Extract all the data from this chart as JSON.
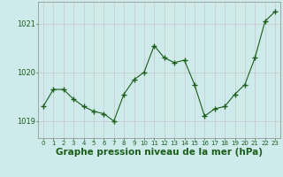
{
  "x": [
    0,
    1,
    2,
    3,
    4,
    5,
    6,
    7,
    8,
    9,
    10,
    11,
    12,
    13,
    14,
    15,
    16,
    17,
    18,
    19,
    20,
    21,
    22,
    23
  ],
  "y": [
    1019.3,
    1019.65,
    1019.65,
    1019.45,
    1019.3,
    1019.2,
    1019.15,
    1019.0,
    1019.55,
    1019.85,
    1020.0,
    1020.55,
    1020.3,
    1020.2,
    1020.25,
    1019.75,
    1019.1,
    1019.25,
    1019.3,
    1019.55,
    1019.75,
    1020.3,
    1021.05,
    1021.25
  ],
  "line_color": "#1a5e1a",
  "marker": "+",
  "marker_size": 4,
  "bg_color": "#ceeaea",
  "grid_color": "#c8c8c8",
  "xlabel": "Graphe pression niveau de la mer (hPa)",
  "xlabel_fontsize": 7.5,
  "yticks": [
    1019,
    1020,
    1021
  ],
  "ylim": [
    1018.65,
    1021.45
  ],
  "xlim": [
    -0.5,
    23.5
  ],
  "xtick_labels": [
    "0",
    "1",
    "2",
    "3",
    "4",
    "5",
    "6",
    "7",
    "8",
    "9",
    "10",
    "11",
    "12",
    "13",
    "14",
    "15",
    "16",
    "17",
    "18",
    "19",
    "20",
    "21",
    "22",
    "23"
  ],
  "axis_label_color": "#1a5e1a",
  "spine_color": "#888888"
}
